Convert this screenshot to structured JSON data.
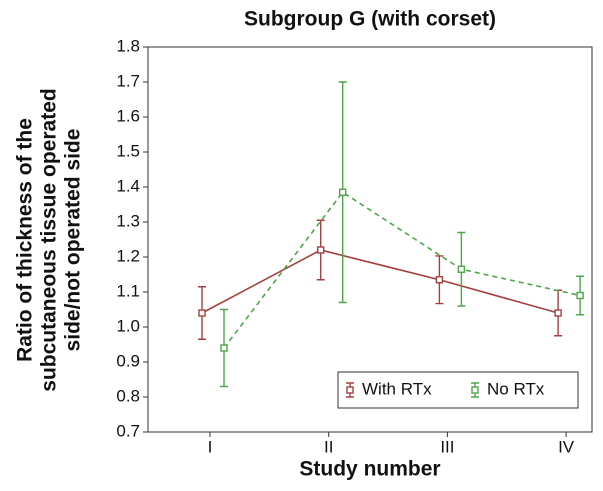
{
  "chart_data": {
    "type": "line",
    "title": "Subgroup G (with corset)",
    "xlabel": "Study number",
    "ylabel": [
      "Ratio of thickness of the",
      "subcutaneous tissue operated",
      "side/not operated side"
    ],
    "categories": [
      "I",
      "II",
      "III",
      "IV"
    ],
    "series": [
      {
        "name": "With RTx",
        "color": "#a3403f",
        "linestyle": "solid",
        "values": [
          1.04,
          1.22,
          1.135,
          1.04
        ],
        "errors": [
          0.075,
          0.085,
          0.068,
          0.065
        ]
      },
      {
        "name": "No RTx",
        "color": "#4ea64a",
        "linestyle": "dashed",
        "values": [
          0.94,
          1.385,
          1.165,
          1.09
        ],
        "errors": [
          0.11,
          0.315,
          0.105,
          0.055
        ]
      }
    ],
    "ylim": [
      0.7,
      1.8
    ],
    "yticks": [
      0.7,
      0.8,
      0.9,
      {
        "value": 1,
        "label": "1.0"
      },
      1.1,
      1.2,
      1.3,
      1.4,
      1.5,
      1.6,
      1.7,
      1.8
    ],
    "legend": "lower right"
  }
}
